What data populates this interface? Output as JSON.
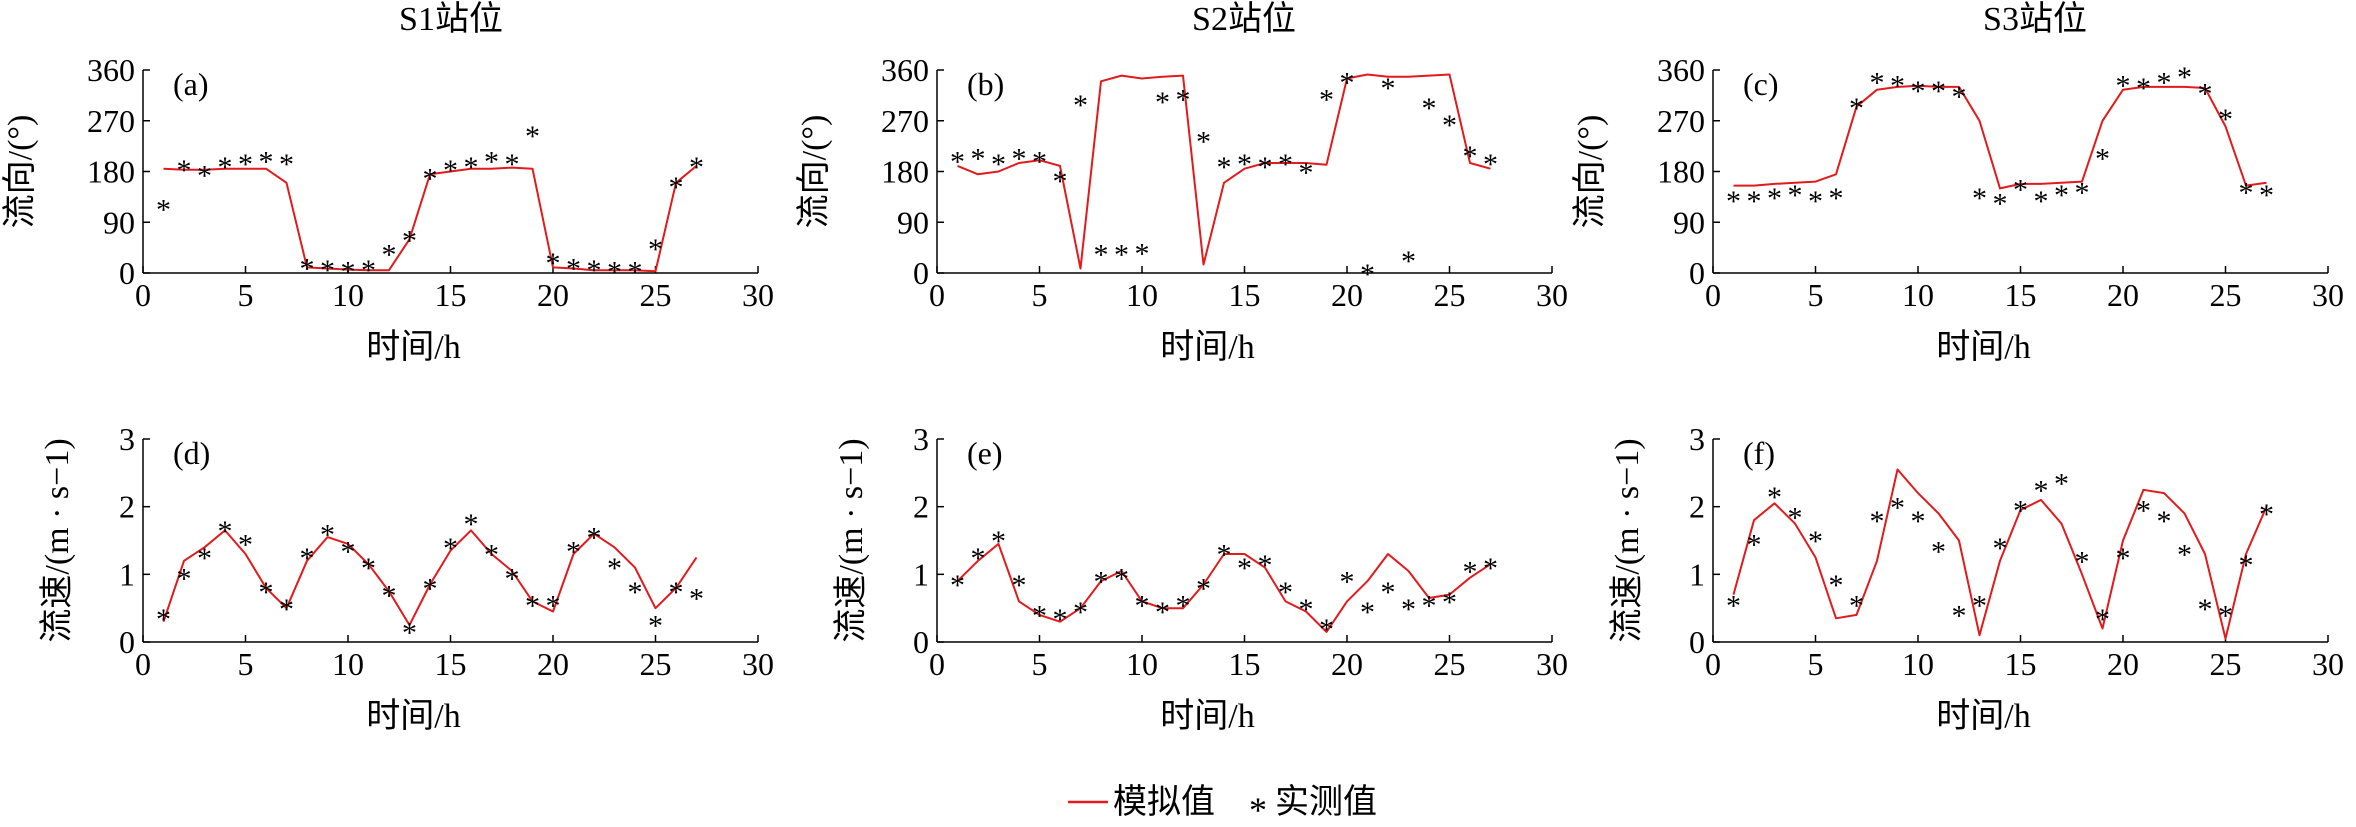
{
  "colors": {
    "simulated": "#e31a1c",
    "measured": "#000000",
    "axis": "#000000"
  },
  "legend": {
    "simulated_label": "模拟值",
    "measured_label": "实测值",
    "measured_marker": "*"
  },
  "column_titles": [
    "S1站位",
    "S2站位",
    "S3站位"
  ],
  "chart_data": [
    {
      "type": "line",
      "panel": "(a)",
      "station": "S1站位",
      "xlabel": "时间/h",
      "ylabel": "流向/(°)",
      "xlim": [
        0,
        30
      ],
      "ylim": [
        0,
        360
      ],
      "xticks": [
        0,
        5,
        10,
        15,
        20,
        25,
        30
      ],
      "yticks": [
        0,
        90,
        180,
        270,
        360
      ],
      "series": [
        {
          "name": "模拟值",
          "style": "line",
          "x": [
            1,
            2,
            3,
            4,
            5,
            6,
            7,
            8,
            9,
            10,
            11,
            12,
            13,
            14,
            15,
            16,
            17,
            18,
            19,
            20,
            21,
            22,
            23,
            24,
            25,
            26,
            27
          ],
          "y": [
            185,
            183,
            183,
            185,
            185,
            185,
            160,
            10,
            8,
            6,
            5,
            5,
            60,
            175,
            180,
            185,
            185,
            187,
            185,
            10,
            8,
            5,
            5,
            5,
            3,
            160,
            190
          ]
        },
        {
          "name": "实测值",
          "style": "marker",
          "x": [
            1,
            2,
            3,
            4,
            5,
            6,
            7,
            8,
            9,
            10,
            11,
            12,
            13,
            14,
            15,
            16,
            17,
            18,
            19,
            20,
            21,
            22,
            23,
            24,
            25,
            26,
            27
          ],
          "y": [
            120,
            190,
            180,
            195,
            200,
            205,
            200,
            15,
            12,
            10,
            12,
            40,
            65,
            175,
            190,
            195,
            205,
            200,
            250,
            25,
            15,
            12,
            10,
            10,
            50,
            160,
            195
          ]
        }
      ]
    },
    {
      "type": "line",
      "panel": "(b)",
      "station": "S2站位",
      "xlabel": "时间/h",
      "ylabel": "流向/(°)",
      "xlim": [
        0,
        30
      ],
      "ylim": [
        0,
        360
      ],
      "xticks": [
        0,
        5,
        10,
        15,
        20,
        25,
        30
      ],
      "yticks": [
        0,
        90,
        180,
        270,
        360
      ],
      "series": [
        {
          "name": "模拟值",
          "style": "line",
          "x": [
            1,
            2,
            3,
            4,
            5,
            6,
            7,
            8,
            9,
            10,
            11,
            12,
            13,
            14,
            15,
            16,
            17,
            18,
            19,
            20,
            21,
            22,
            23,
            24,
            25,
            26,
            27
          ],
          "y": [
            190,
            175,
            180,
            195,
            200,
            190,
            8,
            340,
            350,
            345,
            348,
            350,
            15,
            160,
            185,
            195,
            195,
            195,
            192,
            345,
            352,
            348,
            348,
            350,
            352,
            195,
            185
          ]
        },
        {
          "name": "实测值",
          "style": "marker",
          "x": [
            1,
            2,
            3,
            4,
            5,
            6,
            7,
            8,
            9,
            10,
            11,
            12,
            13,
            14,
            15,
            16,
            17,
            18,
            19,
            20,
            21,
            22,
            23,
            24,
            25,
            26,
            27
          ],
          "y": [
            205,
            210,
            200,
            210,
            205,
            170,
            305,
            40,
            40,
            42,
            310,
            315,
            240,
            195,
            200,
            195,
            200,
            185,
            315,
            345,
            5,
            335,
            28,
            300,
            270,
            215,
            200
          ]
        }
      ]
    },
    {
      "type": "line",
      "panel": "(c)",
      "station": "S3站位",
      "xlabel": "时间/h",
      "ylabel": "流向/(°)",
      "xlim": [
        0,
        30
      ],
      "ylim": [
        0,
        360
      ],
      "xticks": [
        0,
        5,
        10,
        15,
        20,
        25,
        30
      ],
      "yticks": [
        0,
        90,
        180,
        270,
        360
      ],
      "series": [
        {
          "name": "模拟值",
          "style": "line",
          "x": [
            1,
            2,
            3,
            4,
            5,
            6,
            7,
            8,
            9,
            10,
            11,
            12,
            13,
            14,
            15,
            16,
            17,
            18,
            19,
            20,
            21,
            22,
            23,
            24,
            25,
            26,
            27
          ],
          "y": [
            155,
            155,
            158,
            160,
            162,
            175,
            295,
            325,
            330,
            332,
            330,
            330,
            270,
            150,
            158,
            158,
            160,
            162,
            270,
            325,
            330,
            330,
            330,
            328,
            260,
            155,
            160
          ]
        },
        {
          "name": "实测值",
          "style": "marker",
          "x": [
            1,
            2,
            3,
            4,
            5,
            6,
            7,
            8,
            9,
            10,
            11,
            12,
            13,
            14,
            15,
            16,
            17,
            18,
            19,
            20,
            21,
            22,
            23,
            24,
            25,
            26,
            27
          ],
          "y": [
            135,
            135,
            140,
            145,
            135,
            140,
            300,
            345,
            340,
            330,
            330,
            320,
            140,
            130,
            155,
            135,
            145,
            150,
            210,
            340,
            335,
            345,
            355,
            325,
            280,
            150,
            145
          ]
        }
      ]
    },
    {
      "type": "line",
      "panel": "(d)",
      "station": "S1站位",
      "xlabel": "时间/h",
      "ylabel": "流速/(m · s−1)",
      "xlim": [
        0,
        30
      ],
      "ylim": [
        0,
        3
      ],
      "xticks": [
        0,
        5,
        10,
        15,
        20,
        25,
        30
      ],
      "yticks": [
        0,
        1,
        2,
        3
      ],
      "series": [
        {
          "name": "模拟值",
          "style": "line",
          "x": [
            1,
            2,
            3,
            4,
            5,
            6,
            7,
            8,
            9,
            10,
            11,
            12,
            13,
            14,
            15,
            16,
            17,
            18,
            19,
            20,
            21,
            22,
            23,
            24,
            25,
            26,
            27
          ],
          "y": [
            0.3,
            1.2,
            1.4,
            1.65,
            1.3,
            0.8,
            0.5,
            1.2,
            1.55,
            1.45,
            1.15,
            0.75,
            0.25,
            0.85,
            1.35,
            1.65,
            1.3,
            1.05,
            0.6,
            0.45,
            1.3,
            1.6,
            1.4,
            1.1,
            0.5,
            0.8,
            1.25
          ]
        },
        {
          "name": "实测值",
          "style": "marker",
          "x": [
            1,
            2,
            3,
            4,
            5,
            6,
            7,
            8,
            9,
            10,
            11,
            12,
            13,
            14,
            15,
            16,
            17,
            18,
            19,
            20,
            21,
            22,
            23,
            24,
            25,
            26,
            27
          ],
          "y": [
            0.4,
            1.0,
            1.3,
            1.7,
            1.5,
            0.8,
            0.55,
            1.3,
            1.65,
            1.4,
            1.15,
            0.75,
            0.2,
            0.85,
            1.45,
            1.8,
            1.35,
            1.0,
            0.6,
            0.6,
            1.4,
            1.6,
            1.15,
            0.8,
            0.3,
            0.8,
            0.7
          ]
        }
      ]
    },
    {
      "type": "line",
      "panel": "(e)",
      "station": "S2站位",
      "xlabel": "时间/h",
      "ylabel": "流速/(m · s−1)",
      "xlim": [
        0,
        30
      ],
      "ylim": [
        0,
        3
      ],
      "xticks": [
        0,
        5,
        10,
        15,
        20,
        25,
        30
      ],
      "yticks": [
        0,
        1,
        2,
        3
      ],
      "series": [
        {
          "name": "模拟值",
          "style": "line",
          "x": [
            1,
            2,
            3,
            4,
            5,
            6,
            7,
            8,
            9,
            10,
            11,
            12,
            13,
            14,
            15,
            16,
            17,
            18,
            19,
            20,
            21,
            22,
            23,
            24,
            25,
            26,
            27
          ],
          "y": [
            0.9,
            1.2,
            1.45,
            0.6,
            0.4,
            0.3,
            0.5,
            0.9,
            1.05,
            0.6,
            0.5,
            0.5,
            0.85,
            1.3,
            1.3,
            1.1,
            0.6,
            0.45,
            0.15,
            0.6,
            0.9,
            1.3,
            1.05,
            0.65,
            0.7,
            0.95,
            1.15
          ]
        },
        {
          "name": "实测值",
          "style": "marker",
          "x": [
            1,
            2,
            3,
            4,
            5,
            6,
            7,
            8,
            9,
            10,
            11,
            12,
            13,
            14,
            15,
            16,
            17,
            18,
            19,
            20,
            21,
            22,
            23,
            24,
            25,
            26,
            27
          ],
          "y": [
            0.9,
            1.3,
            1.55,
            0.9,
            0.45,
            0.4,
            0.5,
            0.95,
            1.0,
            0.6,
            0.5,
            0.6,
            0.85,
            1.35,
            1.15,
            1.2,
            0.8,
            0.55,
            0.25,
            0.95,
            0.5,
            0.8,
            0.55,
            0.6,
            0.65,
            1.1,
            1.15
          ]
        }
      ]
    },
    {
      "type": "line",
      "panel": "(f)",
      "station": "S3站位",
      "xlabel": "时间/h",
      "ylabel": "流速/(m · s−1)",
      "xlim": [
        0,
        30
      ],
      "ylim": [
        0,
        3
      ],
      "xticks": [
        0,
        5,
        10,
        15,
        20,
        25,
        30
      ],
      "yticks": [
        0,
        1,
        2,
        3
      ],
      "series": [
        {
          "name": "模拟值",
          "style": "line",
          "x": [
            1,
            2,
            3,
            4,
            5,
            6,
            7,
            8,
            9,
            10,
            11,
            12,
            13,
            14,
            15,
            16,
            17,
            18,
            19,
            20,
            21,
            22,
            23,
            24,
            25,
            26,
            27
          ],
          "y": [
            0.7,
            1.8,
            2.05,
            1.75,
            1.25,
            0.35,
            0.4,
            1.2,
            2.55,
            2.2,
            1.9,
            1.5,
            0.1,
            1.2,
            1.95,
            2.1,
            1.75,
            1.0,
            0.2,
            1.5,
            2.25,
            2.2,
            1.9,
            1.3,
            0.05,
            1.3,
            2.0
          ]
        },
        {
          "name": "实测值",
          "style": "marker",
          "x": [
            1,
            2,
            3,
            4,
            5,
            6,
            7,
            8,
            9,
            10,
            11,
            12,
            13,
            14,
            15,
            16,
            17,
            18,
            19,
            20,
            21,
            22,
            23,
            24,
            25,
            26,
            27
          ],
          "y": [
            0.6,
            1.5,
            2.2,
            1.9,
            1.55,
            0.9,
            0.6,
            1.85,
            2.05,
            1.85,
            1.4,
            0.45,
            0.6,
            1.45,
            2.0,
            2.3,
            2.4,
            1.25,
            0.4,
            1.3,
            2.0,
            1.85,
            1.35,
            0.55,
            0.45,
            1.2,
            1.95
          ]
        }
      ]
    }
  ]
}
